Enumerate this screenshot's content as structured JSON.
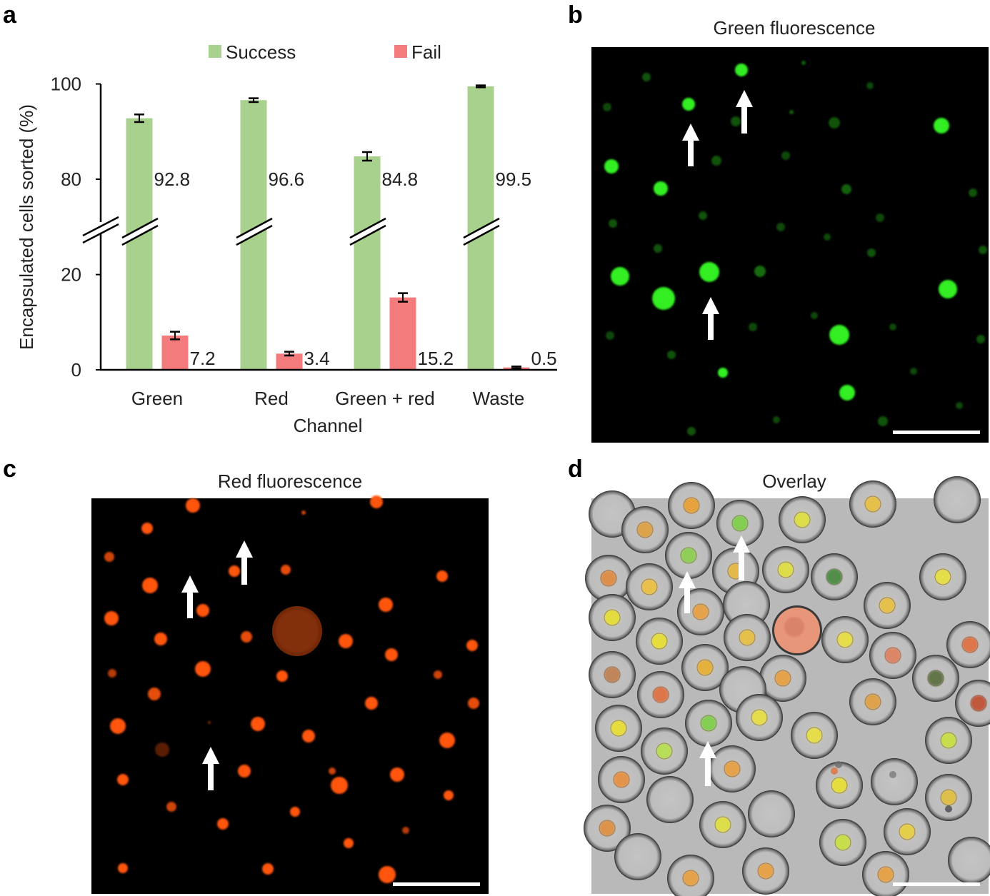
{
  "panel_labels": {
    "a": "a",
    "b": "b",
    "c": "c",
    "d": "d"
  },
  "chart_data": {
    "type": "bar",
    "categories": [
      "Green",
      "Red",
      "Green + red",
      "Waste"
    ],
    "series": [
      {
        "name": "Success",
        "values": [
          92.8,
          96.6,
          84.8,
          99.5
        ],
        "errors": [
          0.8,
          0.4,
          0.9,
          0.2
        ],
        "color": "#a9d18e"
      },
      {
        "name": "Fail",
        "values": [
          7.2,
          3.4,
          15.2,
          0.5
        ],
        "errors": [
          0.8,
          0.4,
          0.9,
          0.2
        ],
        "color": "#f47b7b"
      }
    ],
    "data_labels": {
      "success": [
        "92.8",
        "96.6",
        "84.8",
        "99.5"
      ],
      "fail": [
        "7.2",
        "3.4",
        "15.2",
        "0.5"
      ]
    },
    "xlabel": "Channel",
    "ylabel": "Encapsulated cells sorted (%)",
    "yticks": [
      "0",
      "20",
      "80",
      "100"
    ],
    "ylim": [
      0,
      100
    ],
    "axis_break": [
      30,
      70
    ],
    "legend_position": "top"
  },
  "images": {
    "green": {
      "title": "Green fluorescence",
      "background": "#000000",
      "color": "#33ee22"
    },
    "red": {
      "title": "Red fluorescence",
      "background": "#000000",
      "color": "#ff5511"
    },
    "overlay": {
      "title": "Overlay",
      "background": "#b9b9b9"
    }
  }
}
